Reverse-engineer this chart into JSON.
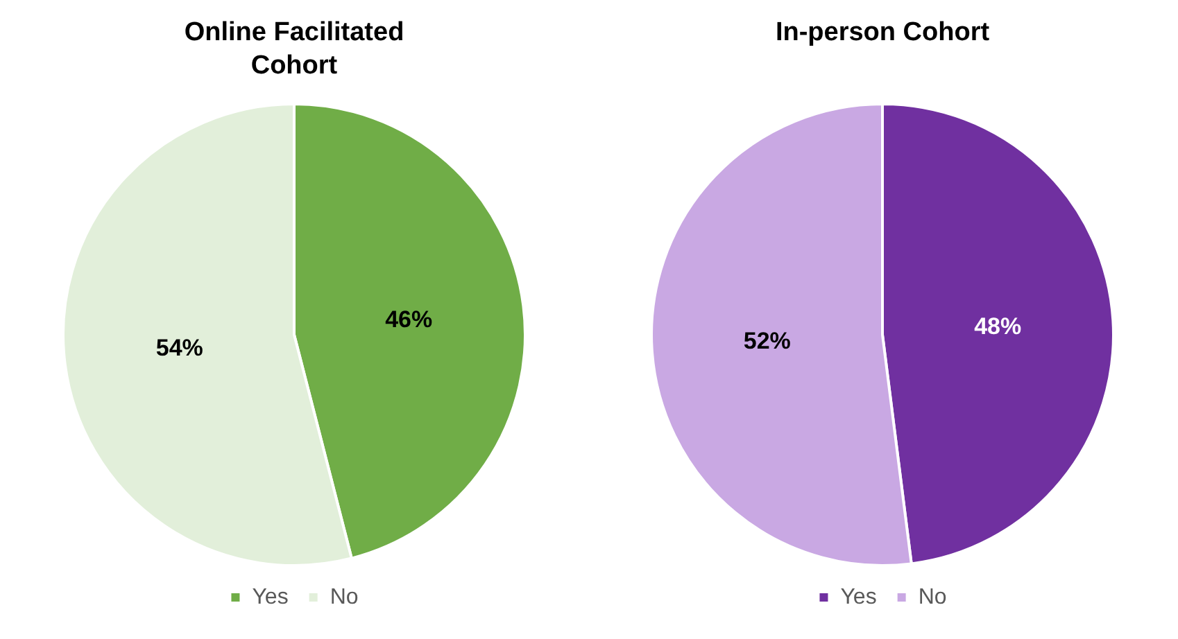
{
  "chart_data": [
    {
      "type": "pie",
      "title": "Online Facilitated Cohort",
      "categories": [
        "Yes",
        "No"
      ],
      "values": [
        46,
        54
      ],
      "colors": [
        "#70ad47",
        "#e2efda"
      ],
      "value_labels": [
        "46%",
        "54%"
      ],
      "legend": "bottom"
    },
    {
      "type": "pie",
      "title": "In-person Cohort",
      "categories": [
        "Yes",
        "No"
      ],
      "values": [
        48,
        52
      ],
      "colors": [
        "#7030a0",
        "#c9a8e3"
      ],
      "value_labels": [
        "48%",
        "52%"
      ],
      "legend": "bottom"
    }
  ]
}
